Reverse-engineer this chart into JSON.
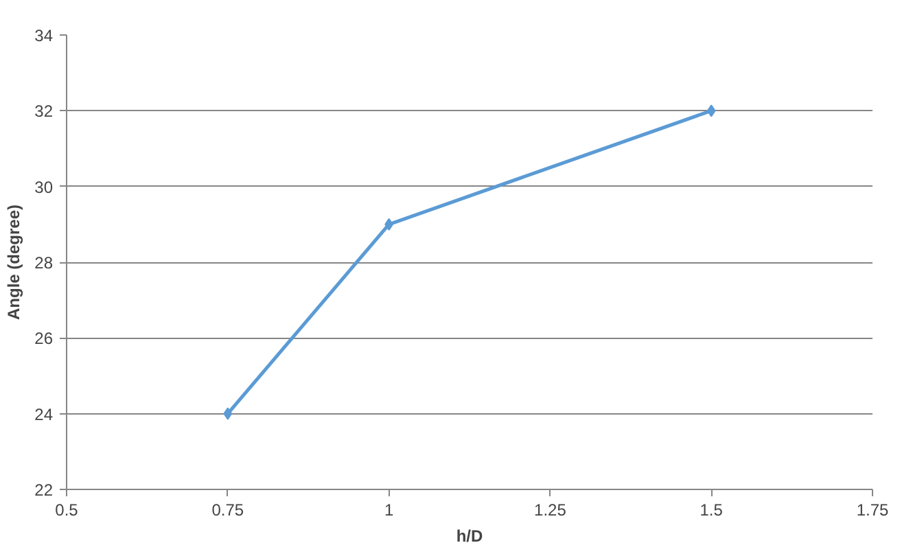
{
  "chart_data": {
    "type": "line",
    "xlabel": "h/D",
    "ylabel": "Angle (degree)",
    "x": [
      0.75,
      1,
      1.5
    ],
    "series": [
      {
        "color": "#5b9bd5",
        "values": [
          24,
          29,
          32
        ]
      }
    ],
    "xlim": [
      0.5,
      1.75
    ],
    "xticks": [
      0.5,
      0.75,
      1,
      1.25,
      1.5,
      1.75
    ],
    "ylim": [
      22,
      34
    ],
    "yticks": [
      22,
      24,
      26,
      28,
      30,
      32,
      34
    ],
    "grid": "y",
    "marker": "diamond",
    "line_style": "solid"
  }
}
